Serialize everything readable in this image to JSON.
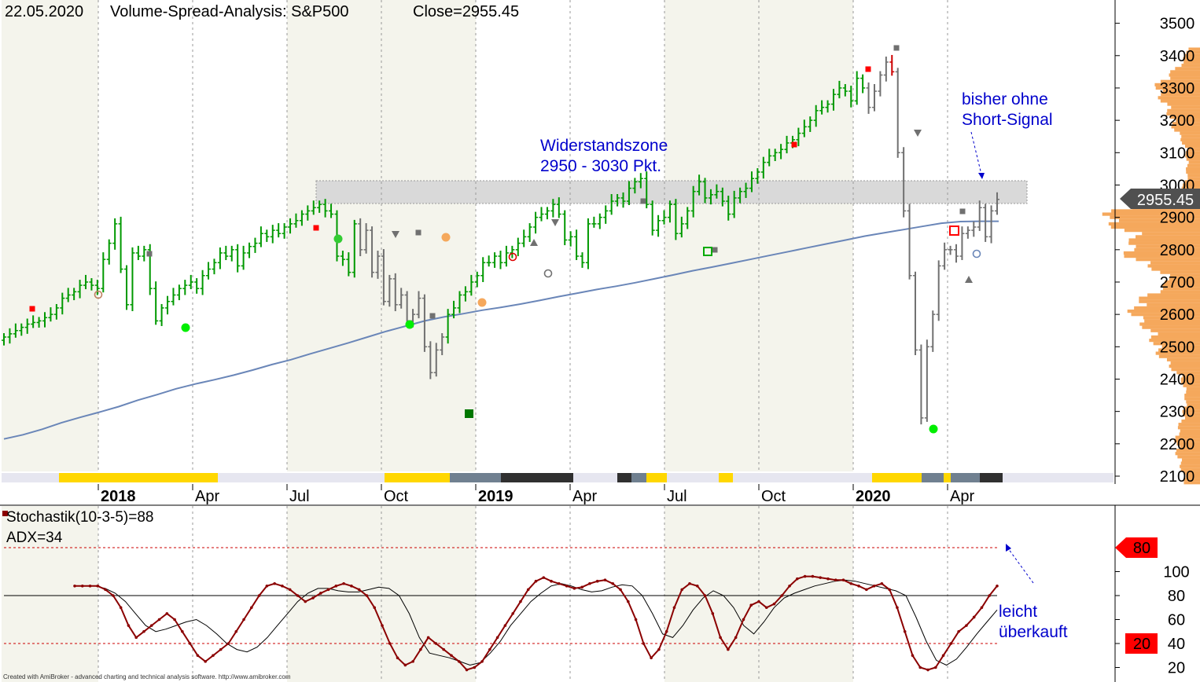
{
  "header": {
    "date": "22.05.2020",
    "title": "Volume-Spread-Analysis: S&P500",
    "close": "Close=2955.45"
  },
  "annotations": {
    "resistance_line1": "Widerstandszone",
    "resistance_line2": "2950 - 3030 Pkt.",
    "signal_line1": "bisher ohne",
    "signal_line2": "Short-Signal",
    "overbought_line1": "leicht",
    "overbought_line2": "überkauft"
  },
  "lower_panel": {
    "stoch_label": "Stochastik(10-3-5)=88",
    "adx_label": "ADX=34",
    "level_80_tag": "80",
    "level_20_tag": "20"
  },
  "footer": "Created with AmiBroker - advanced charting and technical analysis software. http://www.amibroker.com",
  "colors": {
    "up_bar": "#009900",
    "neutral_bar": "#707070",
    "down_bar": "#cc0000",
    "moving_average": "#6a86b8",
    "volume_profile": "#f5a85c",
    "stoch_main": "#8b0000",
    "stoch_signal": "#000000",
    "resistance_zone": "#d9d9d9",
    "annotation_text": "#0000cc",
    "tag_red": "#ff0000",
    "tag_last": "#505050"
  },
  "chart_data": [
    {
      "type": "bar",
      "subtype": "ohlc",
      "title": "Volume-Spread-Analysis: S&P500",
      "y_axis_side": "right",
      "ylim": [
        2080,
        3560
      ],
      "y_ticks": [
        2100,
        2200,
        2300,
        2400,
        2500,
        2600,
        2700,
        2800,
        2900,
        3000,
        3100,
        3200,
        3300,
        3400,
        3500
      ],
      "x_tick_labels": [
        "2018",
        "Apr",
        "Jul",
        "Oct",
        "2019",
        "Apr",
        "Jul",
        "Oct",
        "2020",
        "Apr"
      ],
      "last_close_tag": "2955.45",
      "resistance_zone": [
        2950,
        3030
      ],
      "series": [
        {
          "kind": "weekly_close",
          "values": [
            2530,
            2540,
            2550,
            2560,
            2570,
            2575,
            2580,
            2590,
            2600,
            2620,
            2650,
            2660,
            2670,
            2690,
            2700,
            2690,
            2680,
            2770,
            2820,
            2880,
            2740,
            2630,
            2790,
            2780,
            2800,
            2680,
            2580,
            2620,
            2640,
            2660,
            2680,
            2690,
            2700,
            2680,
            2720,
            2740,
            2760,
            2790,
            2780,
            2800,
            2750,
            2790,
            2810,
            2820,
            2850,
            2840,
            2860,
            2850,
            2870,
            2880,
            2890,
            2910,
            2920,
            2930,
            2940,
            2920,
            2910,
            2780,
            2770,
            2730,
            2880,
            2800,
            2860,
            2730,
            2780,
            2640,
            2710,
            2630,
            2660,
            2580,
            2600,
            2650,
            2500,
            2420,
            2490,
            2530,
            2600,
            2620,
            2660,
            2670,
            2700,
            2720,
            2760,
            2760,
            2780,
            2760,
            2790,
            2800,
            2820,
            2840,
            2870,
            2900,
            2910,
            2920,
            2940,
            2910,
            2830,
            2840,
            2780,
            2760,
            2880,
            2880,
            2900,
            2920,
            2950,
            2960,
            2950,
            2990,
            3010,
            3020,
            2940,
            2860,
            2890,
            2900,
            2940,
            2850,
            2880,
            2920,
            2980,
            3010,
            2960,
            2970,
            2980,
            2950,
            2910,
            2960,
            2980,
            2990,
            3020,
            3040,
            3070,
            3090,
            3100,
            3110,
            3130,
            3140,
            3160,
            3180,
            3200,
            3230,
            3240,
            3250,
            3280,
            3300,
            3290,
            3260,
            3330,
            3300,
            3240,
            3290,
            3340,
            3380,
            3350,
            3100,
            2920,
            2720,
            2490,
            2280,
            2500,
            2600,
            2750,
            2800,
            2800,
            2780,
            2850,
            2860,
            2870,
            2930,
            2840,
            2920,
            2955.45
          ]
        },
        {
          "kind": "moving_average",
          "values": [
            2215,
            2228,
            2245,
            2265,
            2282,
            2298,
            2315,
            2335,
            2352,
            2370,
            2385,
            2398,
            2412,
            2428,
            2445,
            2460,
            2478,
            2495,
            2512,
            2530,
            2548,
            2564,
            2580,
            2592,
            2602,
            2613,
            2622,
            2632,
            2643,
            2655,
            2666,
            2677,
            2687,
            2698,
            2710,
            2722,
            2735,
            2746,
            2758,
            2770,
            2782,
            2794,
            2806,
            2818,
            2830,
            2842,
            2852,
            2862,
            2872,
            2882,
            2887,
            2888,
            2888
          ]
        }
      ],
      "markers": [
        "red-square",
        "gray-square",
        "green-dot",
        "orange-dot",
        "gray-triangle-down",
        "gray-triangle-up",
        "open-circle",
        "open-square-red",
        "open-square-green",
        "dark-green-square"
      ]
    },
    {
      "type": "line",
      "ylim": [
        0,
        110
      ],
      "y_ticks": [
        20,
        40,
        60,
        80,
        100
      ],
      "reference_lines": [
        20,
        50,
        80
      ],
      "series": [
        {
          "name": "Stochastik(10-3-5)",
          "values": [
            88,
            88,
            88,
            88,
            85,
            80,
            70,
            55,
            45,
            50,
            55,
            60,
            65,
            60,
            50,
            40,
            30,
            25,
            30,
            35,
            40,
            50,
            60,
            70,
            80,
            88,
            90,
            88,
            85,
            80,
            75,
            78,
            82,
            85,
            88,
            90,
            88,
            85,
            80,
            70,
            55,
            40,
            28,
            22,
            25,
            35,
            45,
            40,
            35,
            30,
            25,
            18,
            20,
            25,
            35,
            45,
            55,
            65,
            75,
            85,
            92,
            95,
            92,
            90,
            88,
            86,
            87,
            90,
            92,
            93,
            90,
            85,
            75,
            60,
            40,
            28,
            35,
            50,
            70,
            85,
            90,
            88,
            80,
            65,
            45,
            35,
            45,
            60,
            72,
            75,
            70,
            73,
            80,
            88,
            94,
            96,
            96,
            95,
            94,
            93,
            93,
            90,
            88,
            85,
            88,
            90,
            85,
            70,
            50,
            30,
            20,
            18,
            20,
            30,
            40,
            50,
            55,
            62,
            70,
            80,
            88
          ]
        },
        {
          "name": "signal",
          "values": [
            88,
            88,
            88,
            86,
            82,
            75,
            65,
            55,
            50,
            52,
            55,
            58,
            60,
            55,
            48,
            40,
            35,
            33,
            37,
            45,
            55,
            65,
            75,
            82,
            86,
            86,
            84,
            83,
            83,
            85,
            87,
            86,
            80,
            65,
            45,
            32,
            30,
            28,
            25,
            22,
            24,
            32,
            42,
            55,
            65,
            75,
            82,
            88,
            90,
            88,
            85,
            83,
            84,
            87,
            89,
            88,
            80,
            65,
            48,
            45,
            55,
            68,
            78,
            84,
            80,
            70,
            55,
            48,
            58,
            70,
            78,
            82,
            85,
            88,
            90,
            92,
            93,
            92,
            90,
            88,
            86,
            84,
            80,
            62,
            42,
            26,
            22,
            27,
            37,
            48,
            58,
            68
          ]
        }
      ]
    }
  ]
}
